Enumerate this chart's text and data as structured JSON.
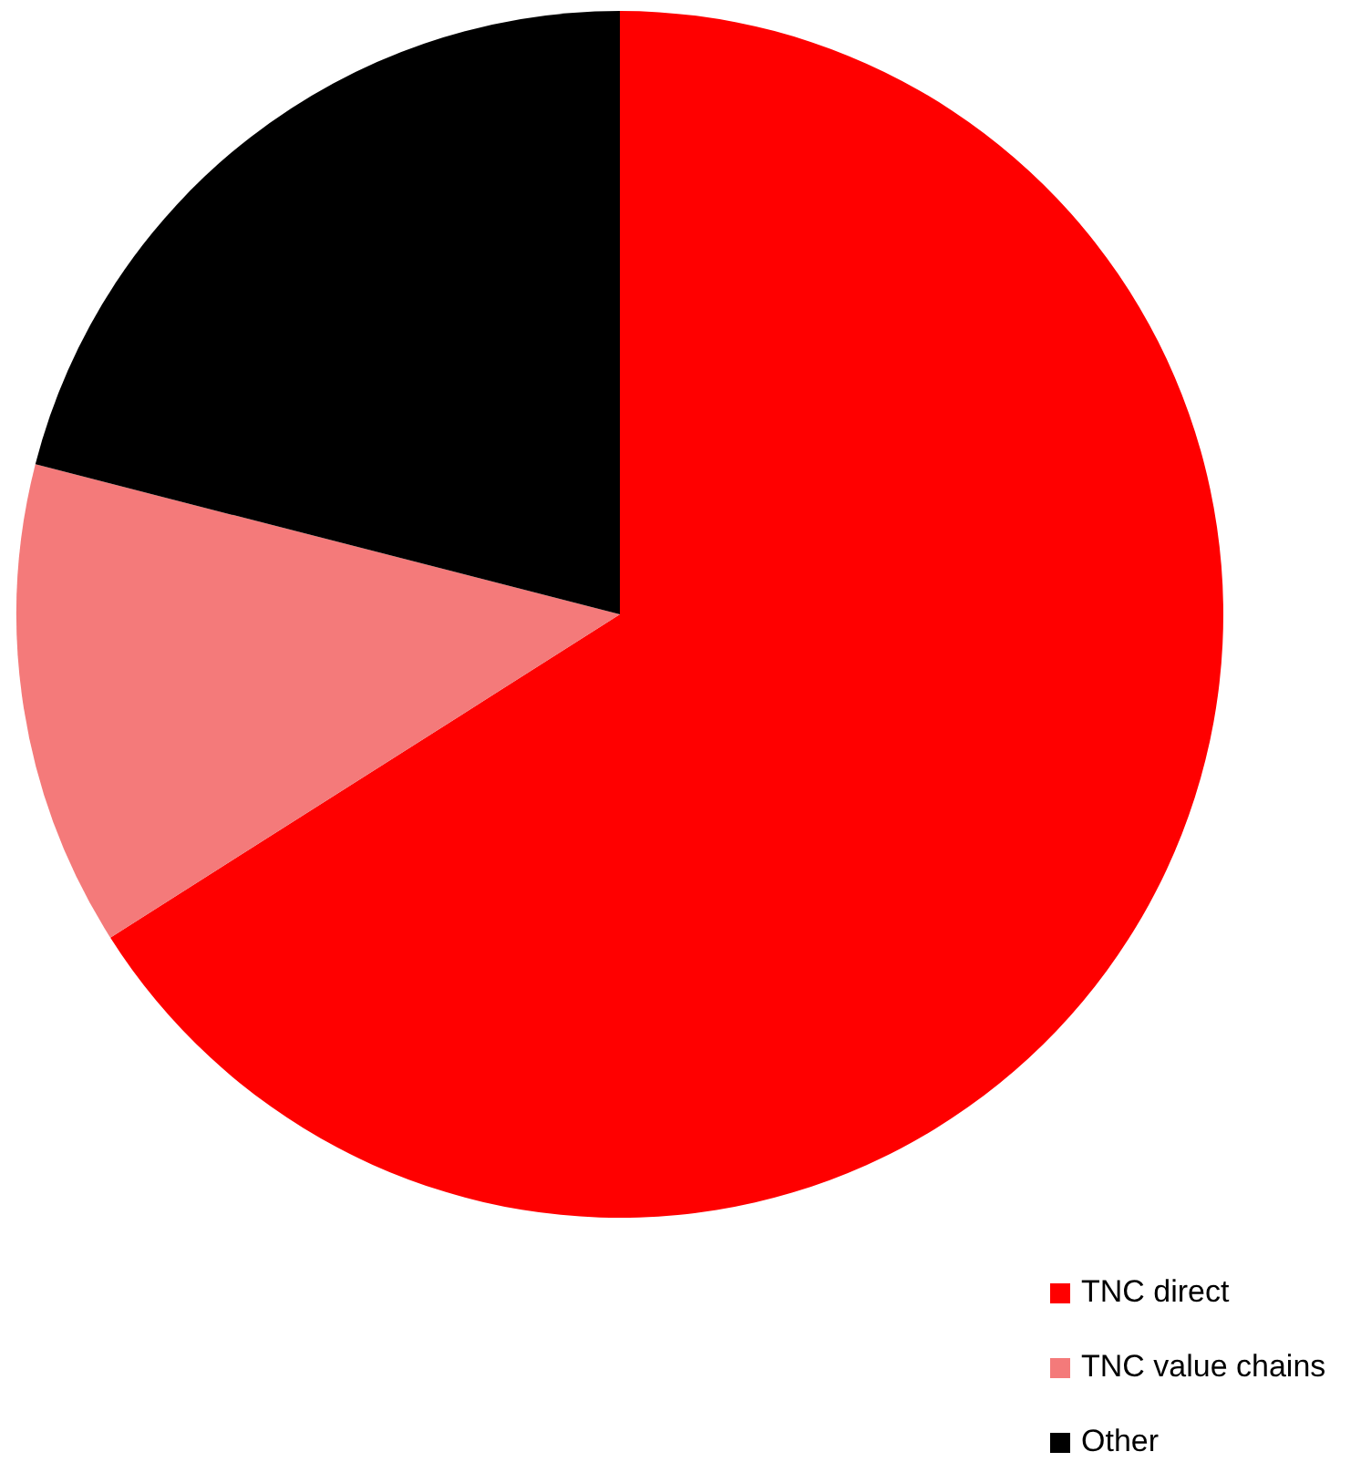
{
  "chart_data": {
    "type": "pie",
    "categories": [
      "TNC direct",
      "TNC value chains",
      "Other"
    ],
    "values": [
      66,
      13,
      21
    ],
    "colors": [
      "#ff0000",
      "#f47a7a",
      "#000000"
    ],
    "legend": "bottom right"
  }
}
